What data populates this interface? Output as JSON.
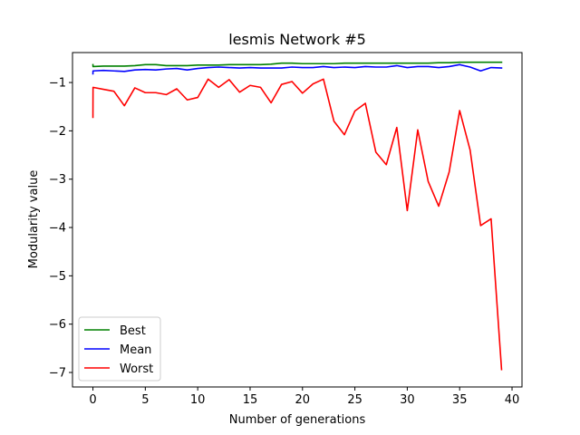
{
  "chart_data": {
    "type": "line",
    "title": "lesmis Network #5",
    "xlabel": "Number of generations",
    "ylabel": "Modularity value",
    "xlim": [
      -1.95,
      40.95
    ],
    "ylim": [
      -7.3,
      -0.38
    ],
    "x_ticks": [
      0,
      5,
      10,
      15,
      20,
      25,
      30,
      35,
      40
    ],
    "y_ticks": [
      -7,
      -6,
      -5,
      -4,
      -3,
      -2,
      -1
    ],
    "legend_position": "lower-left",
    "grid": false,
    "x": [
      0,
      0.01,
      1,
      2,
      3,
      4,
      5,
      6,
      7,
      8,
      9,
      10,
      11,
      12,
      13,
      14,
      15,
      16,
      17,
      18,
      19,
      20,
      21,
      22,
      23,
      24,
      25,
      26,
      27,
      28,
      29,
      30,
      31,
      32,
      33,
      34,
      35,
      36,
      37,
      38,
      39
    ],
    "series": [
      {
        "name": "Best",
        "color": "#008000",
        "values": [
          -0.63,
          -0.67,
          -0.66,
          -0.66,
          -0.66,
          -0.65,
          -0.63,
          -0.63,
          -0.65,
          -0.65,
          -0.65,
          -0.64,
          -0.64,
          -0.64,
          -0.63,
          -0.63,
          -0.63,
          -0.63,
          -0.62,
          -0.6,
          -0.6,
          -0.61,
          -0.61,
          -0.61,
          -0.61,
          -0.6,
          -0.6,
          -0.6,
          -0.6,
          -0.6,
          -0.6,
          -0.6,
          -0.6,
          -0.6,
          -0.59,
          -0.59,
          -0.58,
          -0.58,
          -0.58,
          -0.58,
          -0.58
        ]
      },
      {
        "name": "Mean",
        "color": "#0000ff",
        "values": [
          -0.82,
          -0.76,
          -0.75,
          -0.76,
          -0.77,
          -0.74,
          -0.73,
          -0.74,
          -0.72,
          -0.71,
          -0.74,
          -0.71,
          -0.69,
          -0.68,
          -0.69,
          -0.7,
          -0.69,
          -0.7,
          -0.7,
          -0.7,
          -0.68,
          -0.69,
          -0.69,
          -0.67,
          -0.69,
          -0.68,
          -0.69,
          -0.67,
          -0.68,
          -0.68,
          -0.65,
          -0.69,
          -0.67,
          -0.67,
          -0.69,
          -0.67,
          -0.63,
          -0.68,
          -0.76,
          -0.69,
          -0.7
        ]
      },
      {
        "name": "Worst",
        "color": "#ff0000",
        "values": [
          -1.72,
          -1.1,
          -1.14,
          -1.18,
          -1.48,
          -1.11,
          -1.21,
          -1.21,
          -1.25,
          -1.13,
          -1.36,
          -1.31,
          -0.93,
          -1.1,
          -0.94,
          -1.2,
          -1.06,
          -1.1,
          -1.42,
          -1.04,
          -0.98,
          -1.22,
          -1.03,
          -0.93,
          -1.8,
          -2.08,
          -1.59,
          -1.43,
          -2.44,
          -2.7,
          -1.93,
          -3.65,
          -1.98,
          -3.05,
          -3.56,
          -2.85,
          -1.58,
          -2.4,
          -3.96,
          -3.82,
          -6.94
        ]
      }
    ]
  }
}
